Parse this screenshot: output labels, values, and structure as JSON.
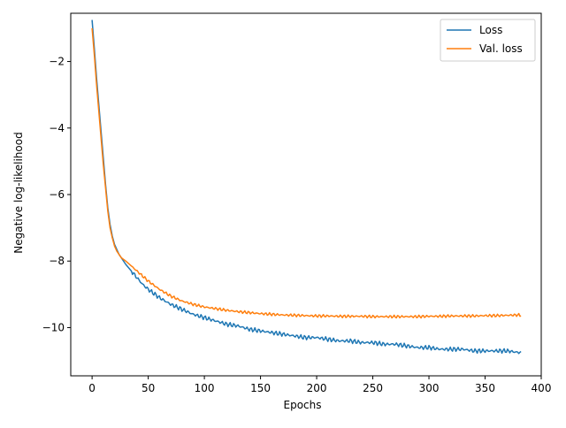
{
  "chart_data": {
    "type": "line",
    "title": "",
    "xlabel": "Epochs",
    "ylabel": "Negative log-likelihood",
    "xlim": [
      -19,
      400
    ],
    "ylim": [
      -11.45,
      -0.55
    ],
    "xticks": [
      0,
      50,
      100,
      150,
      200,
      250,
      300,
      350,
      400
    ],
    "yticks": [
      -10,
      -8,
      -6,
      -4,
      -2
    ],
    "ytick_labels": [
      "−10",
      "−8",
      "−6",
      "−4",
      "−2"
    ],
    "grid": false,
    "legend_position": "top-right",
    "series": [
      {
        "name": "Loss",
        "color": "#1f77b4",
        "x": [
          0,
          2,
          4,
          6,
          8,
          10,
          12,
          14,
          16,
          18,
          20,
          22,
          24,
          26,
          28,
          30,
          35,
          40,
          45,
          50,
          60,
          70,
          80,
          90,
          100,
          110,
          120,
          130,
          140,
          150,
          160,
          170,
          180,
          190,
          200,
          210,
          220,
          230,
          240,
          250,
          260,
          270,
          280,
          290,
          300,
          310,
          320,
          330,
          340,
          350,
          360,
          370,
          380,
          382
        ],
        "y": [
          -0.75,
          -1.6,
          -2.5,
          -3.3,
          -4.1,
          -4.9,
          -5.7,
          -6.4,
          -6.9,
          -7.25,
          -7.5,
          -7.65,
          -7.8,
          -7.9,
          -8.0,
          -8.1,
          -8.3,
          -8.5,
          -8.7,
          -8.85,
          -9.1,
          -9.3,
          -9.45,
          -9.6,
          -9.7,
          -9.8,
          -9.9,
          -9.95,
          -10.05,
          -10.1,
          -10.15,
          -10.2,
          -10.25,
          -10.3,
          -10.3,
          -10.35,
          -10.4,
          -10.4,
          -10.45,
          -10.45,
          -10.5,
          -10.5,
          -10.55,
          -10.6,
          -10.6,
          -10.65,
          -10.65,
          -10.65,
          -10.7,
          -10.7,
          -10.7,
          -10.7,
          -10.75,
          -10.72
        ]
      },
      {
        "name": "Val. loss",
        "color": "#ff7f0e",
        "x": [
          0,
          2,
          4,
          6,
          8,
          10,
          12,
          14,
          16,
          18,
          20,
          22,
          24,
          26,
          28,
          30,
          35,
          40,
          45,
          50,
          60,
          70,
          80,
          90,
          100,
          110,
          120,
          130,
          140,
          150,
          160,
          170,
          180,
          190,
          200,
          210,
          220,
          230,
          240,
          250,
          260,
          270,
          280,
          290,
          300,
          310,
          320,
          330,
          340,
          350,
          360,
          370,
          380,
          382
        ],
        "y": [
          -1.0,
          -1.8,
          -2.7,
          -3.5,
          -4.3,
          -5.1,
          -5.8,
          -6.5,
          -7.0,
          -7.3,
          -7.55,
          -7.7,
          -7.8,
          -7.9,
          -7.95,
          -8.0,
          -8.15,
          -8.3,
          -8.45,
          -8.6,
          -8.85,
          -9.05,
          -9.2,
          -9.3,
          -9.38,
          -9.43,
          -9.48,
          -9.52,
          -9.55,
          -9.58,
          -9.6,
          -9.62,
          -9.63,
          -9.64,
          -9.65,
          -9.65,
          -9.66,
          -9.66,
          -9.66,
          -9.67,
          -9.67,
          -9.67,
          -9.67,
          -9.67,
          -9.66,
          -9.66,
          -9.65,
          -9.65,
          -9.65,
          -9.64,
          -9.64,
          -9.63,
          -9.62,
          -9.65
        ]
      }
    ]
  }
}
